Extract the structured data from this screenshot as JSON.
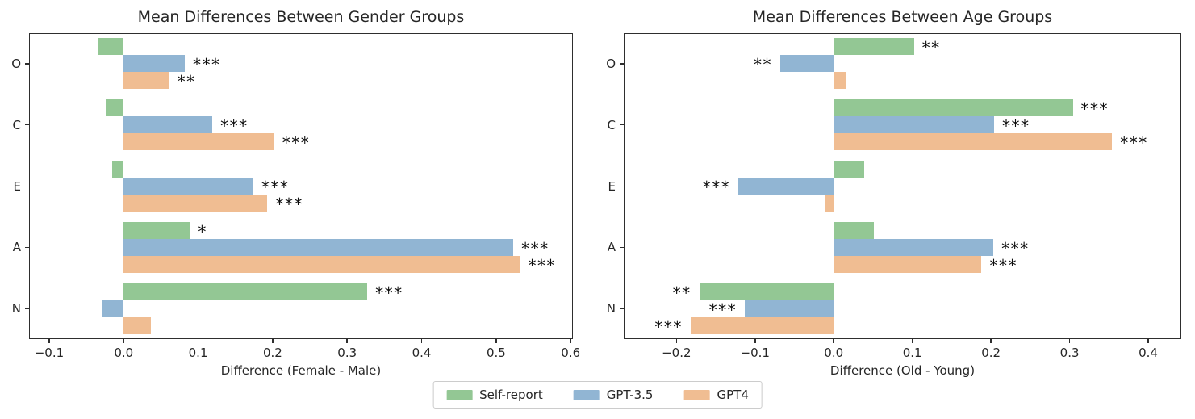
{
  "chart_data": [
    {
      "type": "bar",
      "orientation": "horizontal",
      "title": "Mean Differences Between Gender Groups",
      "xlabel": "Difference (Female - Male)",
      "ylabel": "",
      "categories": [
        "O",
        "C",
        "E",
        "A",
        "N"
      ],
      "xlim": [
        -0.127,
        0.603
      ],
      "xtick_values": [
        -0.1,
        0.0,
        0.1,
        0.2,
        0.3,
        0.4,
        0.5,
        0.6
      ],
      "xtick_labels": [
        "−0.1",
        "0.0",
        "0.1",
        "0.2",
        "0.3",
        "0.4",
        "0.5",
        "0.6"
      ],
      "grid": false,
      "series": [
        {
          "name": "Self-report",
          "color": "#93c794",
          "values": [
            -0.034,
            -0.024,
            -0.015,
            0.089,
            0.327
          ],
          "significance": [
            "",
            "",
            "",
            "*",
            "***"
          ]
        },
        {
          "name": "GPT-3.5",
          "color": "#91b5d3",
          "values": [
            0.082,
            0.119,
            0.174,
            0.523,
            -0.028
          ],
          "significance": [
            "***",
            "***",
            "***",
            "***",
            ""
          ]
        },
        {
          "name": "GPT4",
          "color": "#f0bd92",
          "values": [
            0.061,
            0.202,
            0.193,
            0.532,
            0.037
          ],
          "significance": [
            "**",
            "***",
            "***",
            "***",
            ""
          ]
        }
      ]
    },
    {
      "type": "bar",
      "orientation": "horizontal",
      "title": "Mean Differences Between Age Groups",
      "xlabel": "Difference (Old - Young)",
      "ylabel": "",
      "categories": [
        "O",
        "C",
        "E",
        "A",
        "N"
      ],
      "xlim": [
        -0.267,
        0.442
      ],
      "xtick_values": [
        -0.2,
        -0.1,
        0.0,
        0.1,
        0.2,
        0.3,
        0.4
      ],
      "xtick_labels": [
        "−0.2",
        "−0.1",
        "0.0",
        "0.1",
        "0.2",
        "0.3",
        "0.4"
      ],
      "grid": false,
      "series": [
        {
          "name": "Self-report",
          "color": "#93c794",
          "values": [
            0.102,
            0.304,
            0.039,
            0.051,
            -0.171
          ],
          "significance": [
            "**",
            "***",
            "",
            "",
            "**"
          ]
        },
        {
          "name": "GPT-3.5",
          "color": "#91b5d3",
          "values": [
            -0.068,
            0.204,
            -0.121,
            0.203,
            -0.113
          ],
          "significance": [
            "**",
            "***",
            "***",
            "***",
            "***"
          ]
        },
        {
          "name": "GPT4",
          "color": "#f0bd92",
          "values": [
            0.016,
            0.354,
            -0.01,
            0.188,
            -0.182
          ],
          "significance": [
            "",
            "***",
            "",
            "***",
            "***"
          ]
        }
      ]
    }
  ],
  "legend": {
    "position": "bottom-center",
    "items": [
      "Self-report",
      "GPT-3.5",
      "GPT4"
    ]
  }
}
